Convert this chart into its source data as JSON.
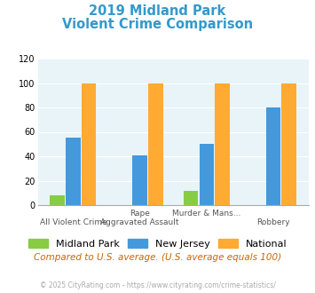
{
  "title_line1": "2019 Midland Park",
  "title_line2": "Violent Crime Comparison",
  "title_color": "#3399cc",
  "group_labels_top": [
    "",
    "Rape",
    "Murder & Mans...",
    ""
  ],
  "group_labels_bot": [
    "All Violent Crime",
    "Aggravated Assault",
    "",
    "Robbery"
  ],
  "mp_vals": [
    8,
    0,
    12,
    0
  ],
  "nj_vals": [
    55,
    41,
    50,
    80
  ],
  "nat_vals": [
    100,
    100,
    100,
    100
  ],
  "color_mp": "#88cc44",
  "color_nj": "#4499dd",
  "color_nat": "#ffaa33",
  "background_plot": "#e8f4f8",
  "ylim": [
    0,
    120
  ],
  "yticks": [
    0,
    20,
    40,
    60,
    80,
    100,
    120
  ],
  "note": "Compared to U.S. average. (U.S. average equals 100)",
  "footer": "© 2025 CityRating.com - https://www.cityrating.com/crime-statistics/",
  "legend_labels": [
    "Midland Park",
    "New Jersey",
    "National"
  ]
}
